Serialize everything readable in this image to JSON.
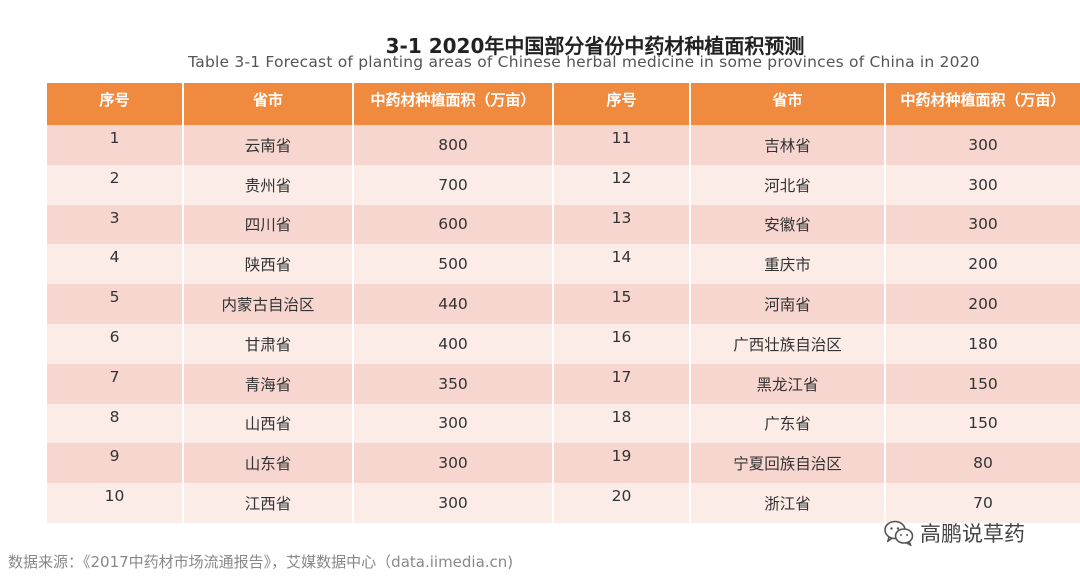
{
  "title": {
    "cn": "3-1 2020年中国部分省份中药材种植面积预测",
    "en": "Table 3-1 Forecast of planting areas of Chinese herbal medicine in some provinces of China in 2020"
  },
  "table": {
    "headers": [
      "序号",
      "省市",
      "中药材种植面积（万亩）",
      "序号",
      "省市",
      "中药材种植面积（万亩）"
    ],
    "rows": [
      [
        "1",
        "云南省",
        "800",
        "11",
        "吉林省",
        "300"
      ],
      [
        "2",
        "贵州省",
        "700",
        "12",
        "河北省",
        "300"
      ],
      [
        "3",
        "四川省",
        "600",
        "13",
        "安徽省",
        "300"
      ],
      [
        "4",
        "陕西省",
        "500",
        "14",
        "重庆市",
        "200"
      ],
      [
        "5",
        "内蒙古自治区",
        "440",
        "15",
        "河南省",
        "200"
      ],
      [
        "6",
        "甘肃省",
        "400",
        "16",
        "广西壮族自治区",
        "180"
      ],
      [
        "7",
        "青海省",
        "350",
        "17",
        "黑龙江省",
        "150"
      ],
      [
        "8",
        "山西省",
        "300",
        "18",
        "广东省",
        "150"
      ],
      [
        "9",
        "山东省",
        "300",
        "19",
        "宁夏回族自治区",
        "80"
      ],
      [
        "10",
        "江西省",
        "300",
        "20",
        "浙江省",
        "70"
      ]
    ]
  },
  "watermark": {
    "icon": "wechat-icon",
    "text": "高鹏说草药"
  },
  "source": "数据来源：《2017中药材市场流通报告》，艾媒数据中心（data.iimedia.cn)",
  "colors": {
    "header_bg": "#ef8a3f",
    "row_odd": "#f7d6cf",
    "row_even": "#fcece8"
  }
}
